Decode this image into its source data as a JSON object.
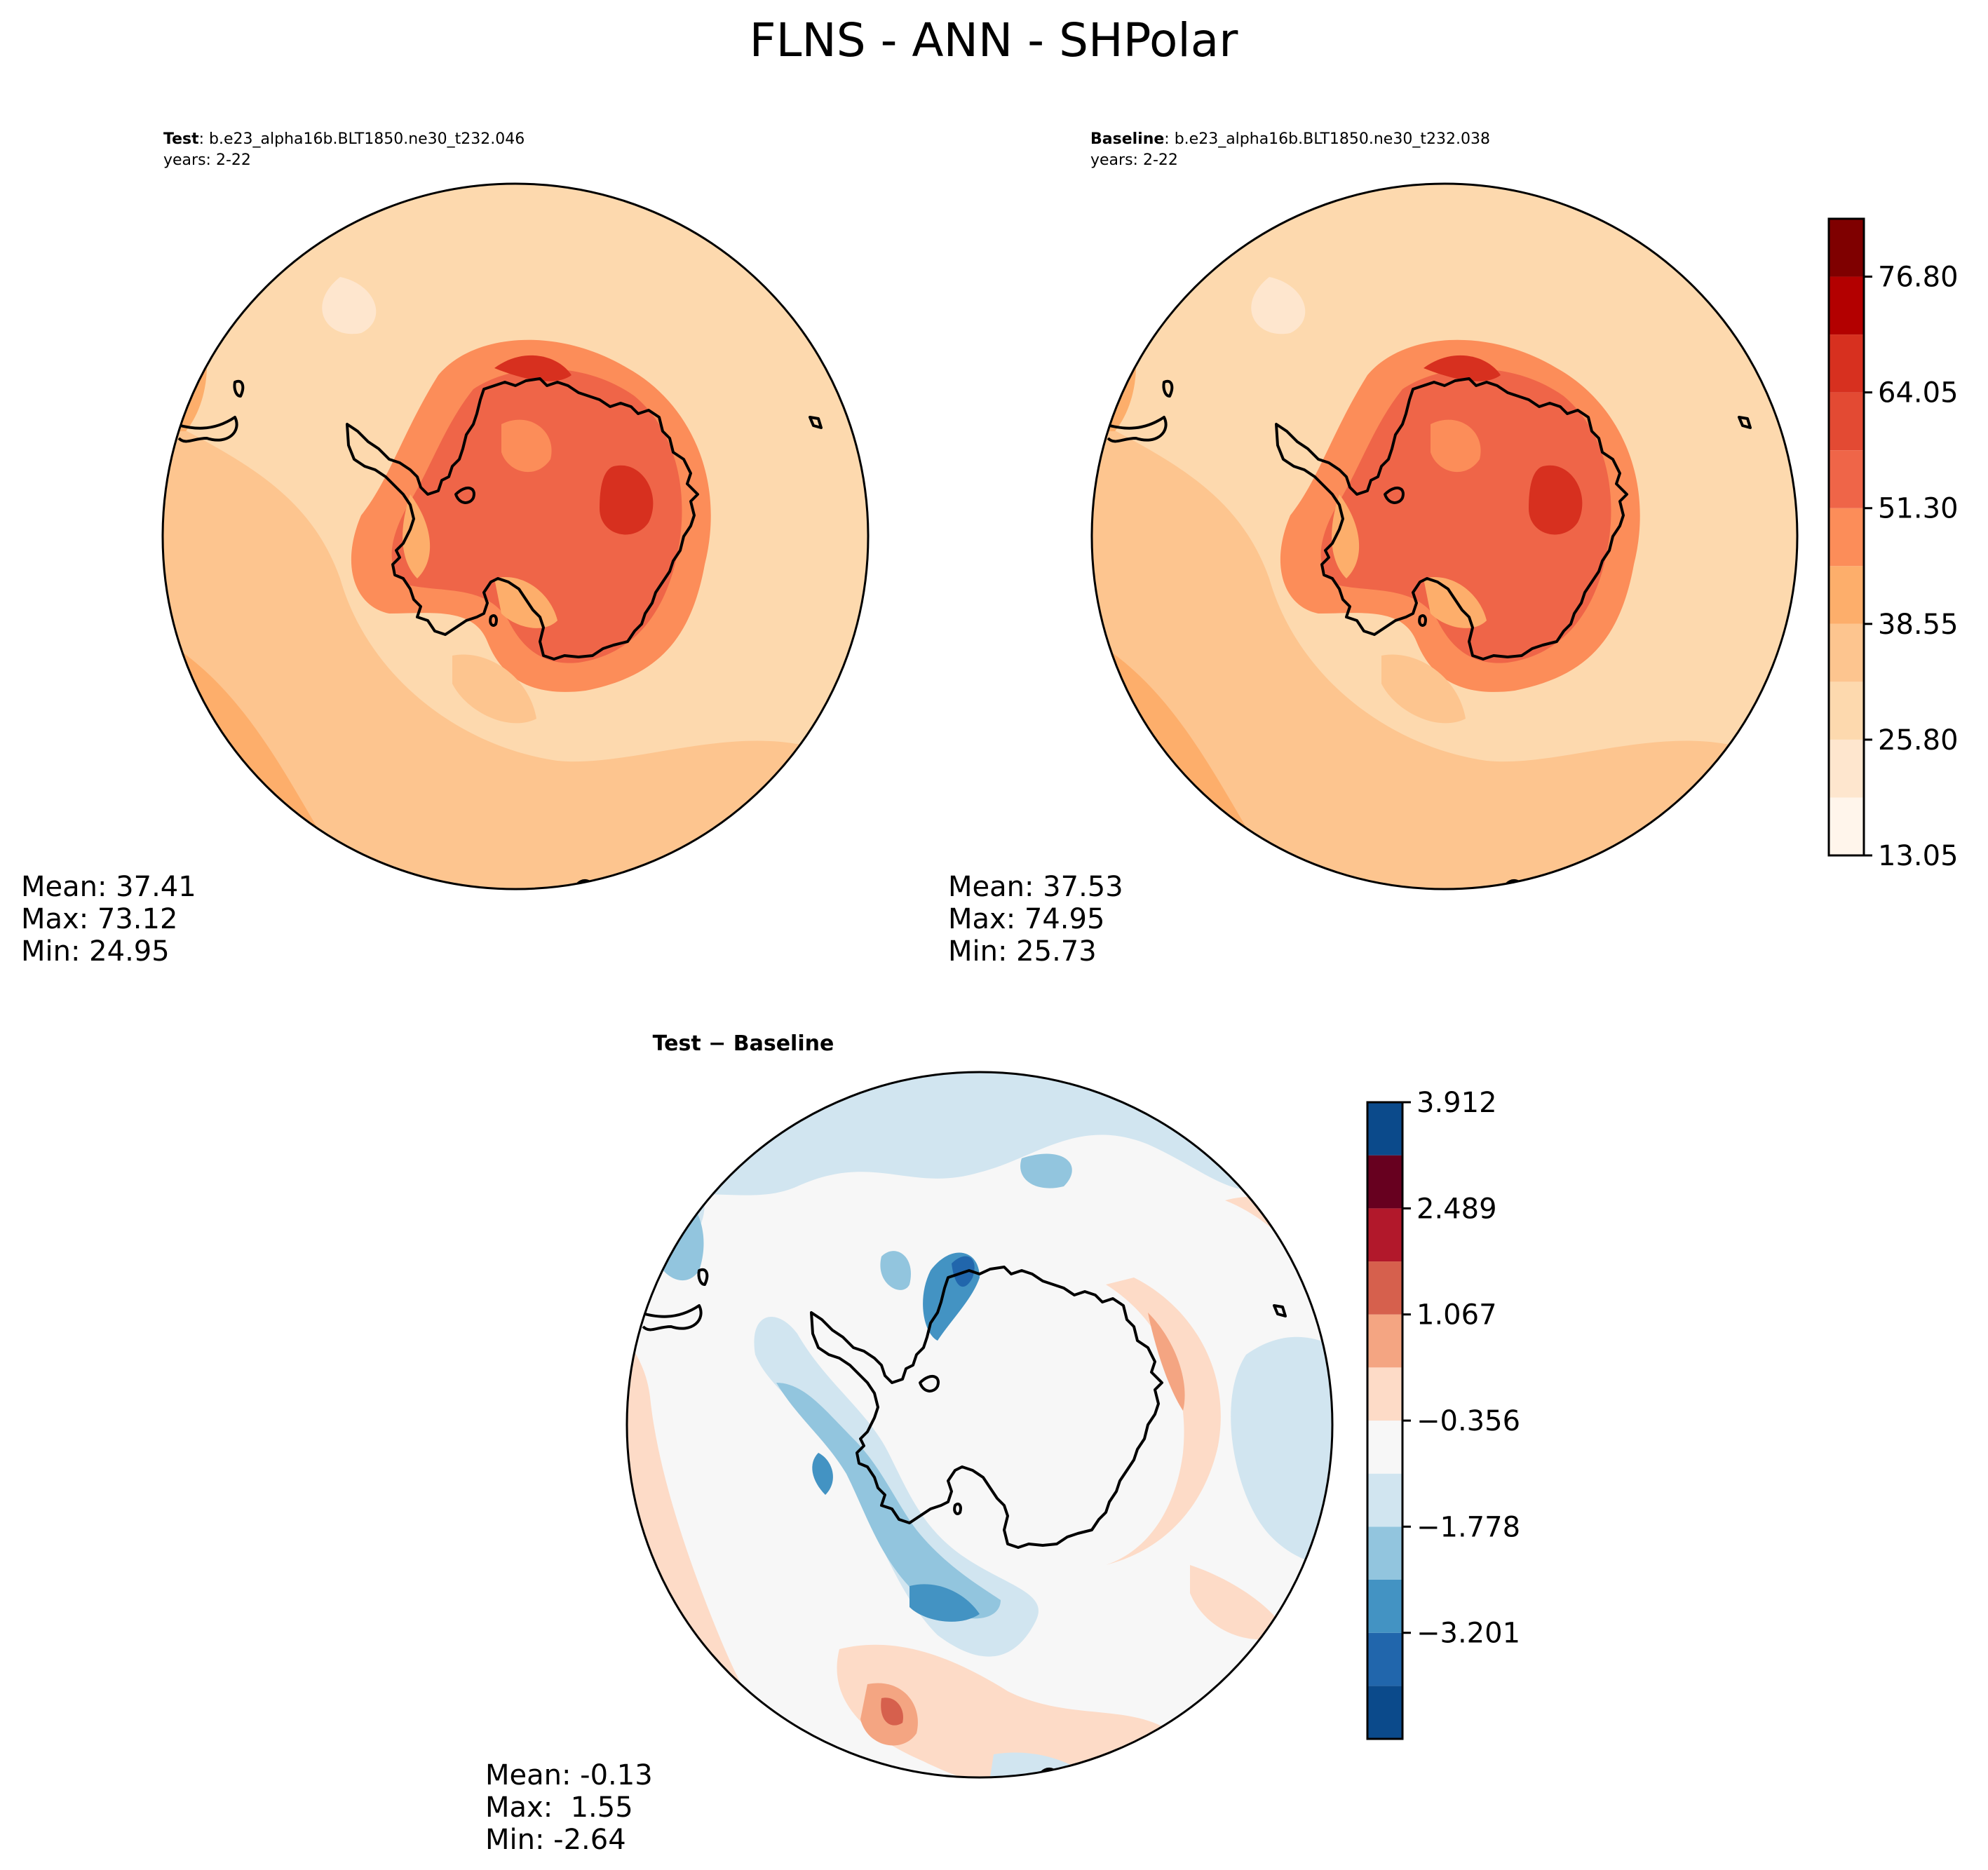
{
  "figure": {
    "title": "FLNS - ANN - SHPolar"
  },
  "colors": {
    "sequential": [
      "#fff5eb",
      "#fee6ce",
      "#fdd9ae",
      "#fdc58f",
      "#fdae6b",
      "#fc8d59",
      "#ef6548",
      "#e34a33",
      "#d7301f",
      "#b30000",
      "#7f0000"
    ],
    "diverging": [
      "#0b4a8b",
      "#2166ac",
      "#4393c3",
      "#92c5de",
      "#d1e5f0",
      "#f7f7f7",
      "#fddbc7",
      "#f4a582",
      "#d6604d",
      "#b2182b",
      "#67001f"
    ],
    "coastline": "#000000"
  },
  "chart_data": [
    {
      "type": "heatmap",
      "projection": "south-polar-stereographic",
      "panel": "test",
      "label_bold": "Test",
      "label_rest": ": b.e23_alpha16b.BLT1850.ne30_t232.046",
      "years": "years: 2-22",
      "stats": {
        "mean": "Mean: 37.41",
        "max": "Max: 73.12",
        "min": "Min: 24.95"
      },
      "colorbar": "shared"
    },
    {
      "type": "heatmap",
      "projection": "south-polar-stereographic",
      "panel": "baseline",
      "label_bold": "Baseline",
      "label_rest": ": b.e23_alpha16b.BLT1850.ne30_t232.038",
      "years": "years: 2-22",
      "stats": {
        "mean": "Mean: 37.53",
        "max": "Max: 74.95",
        "min": "Min: 25.73"
      },
      "colorbar": {
        "levels": [
          13.05,
          19.425,
          25.8,
          32.175,
          38.55,
          44.925,
          51.3,
          57.675,
          64.05,
          70.425,
          76.8,
          83.175
        ],
        "tick_labels": [
          "13.05",
          "25.80",
          "38.55",
          "51.30",
          "64.05",
          "76.80"
        ],
        "tick_values": [
          13.05,
          25.8,
          38.55,
          51.3,
          64.05,
          76.8
        ]
      }
    },
    {
      "type": "heatmap",
      "projection": "south-polar-stereographic",
      "panel": "difference",
      "label_bold": "Test − Baseline",
      "stats": {
        "mean": "Mean: -0.13",
        "max": "Max:  1.55",
        "min": "Min: -2.64"
      },
      "colorbar": {
        "levels": [
          -4.623,
          -3.912,
          -3.201,
          -2.489,
          -1.778,
          -1.067,
          -0.356,
          0.356,
          1.067,
          1.778,
          2.489,
          3.201,
          3.912
        ],
        "tick_labels": [
          "−3.201",
          "−1.778",
          "−0.356",
          "1.067",
          "2.489",
          "3.912"
        ],
        "tick_values": [
          -3.201,
          -1.778,
          -0.356,
          1.067,
          2.489,
          3.912
        ]
      }
    }
  ]
}
